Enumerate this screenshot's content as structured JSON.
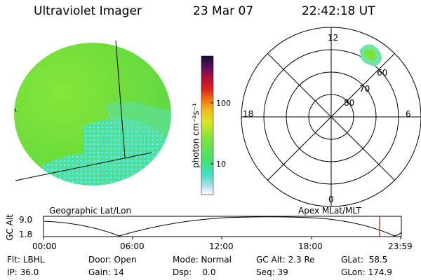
{
  "header": {
    "instrument": "Ultraviolet Imager",
    "date": "23 Mar 07",
    "time": "22:42:18 UT"
  },
  "colorbar": {
    "unit_label": "photon cm⁻²s⁻¹",
    "ticks": [
      "100",
      "10"
    ]
  },
  "left_panel": {
    "caption": "Geographic Lat/Lon"
  },
  "right_panel": {
    "caption": "Apex MLat/MLT",
    "mlt_labels": {
      "top": "12",
      "left": "18",
      "right": "6",
      "bottom": "0"
    },
    "lat_labels": [
      "60",
      "70",
      "80"
    ]
  },
  "altitude_plot": {
    "ylabel": "GC Alt",
    "ytick_top": "9.0",
    "ytick_bottom": "1.8",
    "xticks": [
      "00:00",
      "06:00",
      "12:00",
      "18:00",
      "23:59"
    ],
    "marker_color": "#cc0000"
  },
  "status": {
    "row1": {
      "flt": "Flt: LBHL",
      "door": "Door: Open",
      "mode": "Mode: Normal",
      "gcalt": "GC Alt: 2.3 Re",
      "glat": "GLat:  58.5"
    },
    "row2": {
      "ip": "IP: 36.0",
      "gain": "Gain: 14",
      "dsp": "Dsp:    0.0",
      "seq": "Seq: 39",
      "glon": "GLon: 174.9"
    }
  },
  "colors": {
    "disk_main": "#7ee23c",
    "disk_cyan": "#3fe0c8",
    "disk_light": "#a8e8c0"
  }
}
